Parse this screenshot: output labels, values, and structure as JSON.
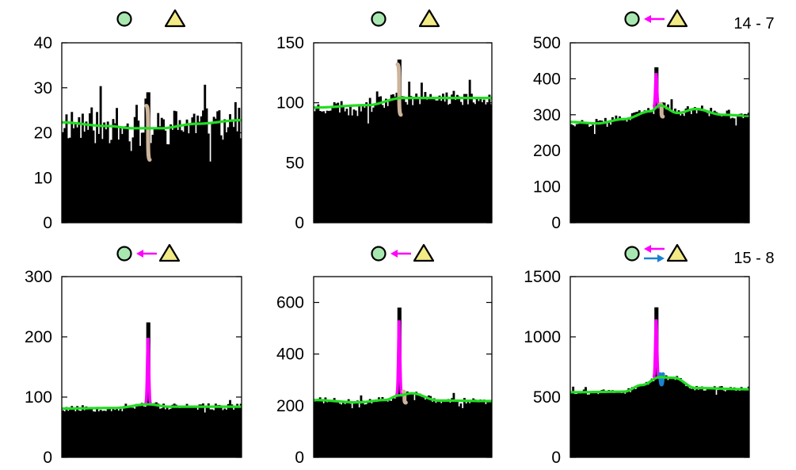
{
  "figure": {
    "background": "#ffffff",
    "colors": {
      "histogram": "#000000",
      "background_fit": "#22dd22",
      "enhancement": "#ff00ff",
      "depletion": "#ccb49a",
      "secondary_peak": "#1b82d0",
      "circle_marker": "#a8e8b0",
      "triangle_marker": "#f2ea85",
      "arrow_magenta": "#ff00ff",
      "arrow_blue": "#1b82d0"
    },
    "icons": [
      "circle-marker-icon",
      "triangle-marker-icon",
      "arrow-left-magenta-icon",
      "arrow-right-blue-icon"
    ],
    "corner_labels": [
      "14 - 7",
      "15 - 8"
    ]
  },
  "chart_data": [
    {
      "type": "bar",
      "panel": "top-left",
      "header": {
        "circle": true,
        "triangle": true,
        "arrows": []
      },
      "ylim": [
        0,
        40
      ],
      "yticks": [
        "0",
        "10",
        "20",
        "30",
        "40"
      ],
      "grid": false,
      "xticks": false,
      "histogram": {
        "bins": 100,
        "level": 21,
        "noise": 4.2,
        "seed": 11,
        "spikes": [
          {
            "x": 0.48,
            "w": 0.012,
            "value": 29
          }
        ]
      },
      "background_curve": {
        "x": [
          0,
          0.25,
          0.4,
          0.55,
          0.75,
          1
        ],
        "y": [
          22.3,
          21.5,
          21,
          21,
          22,
          22.8
        ]
      },
      "features": [
        {
          "kind": "depletion",
          "x": 0.48,
          "width": 0.018,
          "top": 26,
          "bottom": 14
        }
      ],
      "corner_label": ""
    },
    {
      "type": "bar",
      "panel": "top-middle",
      "header": {
        "circle": true,
        "triangle": true,
        "arrows": []
      },
      "ylim": [
        0,
        150
      ],
      "yticks": [
        "0",
        "50",
        "100",
        "150"
      ],
      "grid": false,
      "xticks": false,
      "histogram": {
        "bins": 100,
        "level": 100,
        "noise": 6,
        "seed": 23,
        "spikes": [
          {
            "x": 0.48,
            "w": 0.012,
            "value": 136
          }
        ]
      },
      "background_curve": {
        "x": [
          0,
          0.3,
          0.5,
          0.7,
          1
        ],
        "y": [
          96,
          98,
          104,
          104,
          104
        ]
      },
      "features": [
        {
          "kind": "depletion",
          "x": 0.48,
          "width": 0.018,
          "top": 132,
          "bottom": 90
        }
      ],
      "corner_label": ""
    },
    {
      "type": "bar",
      "panel": "top-right",
      "header": {
        "circle": true,
        "triangle": true,
        "arrows": [
          "left-magenta"
        ]
      },
      "ylim": [
        0,
        500
      ],
      "yticks": [
        "0",
        "100",
        "200",
        "300",
        "400",
        "500"
      ],
      "grid": false,
      "xticks": false,
      "histogram": {
        "bins": 100,
        "level": 292,
        "noise": 13,
        "seed": 37,
        "spikes": [
          {
            "x": 0.48,
            "w": 0.012,
            "value": 432
          }
        ]
      },
      "background_curve": {
        "x": [
          0,
          0.15,
          0.3,
          0.45,
          0.5,
          0.6,
          0.7,
          0.85,
          1
        ],
        "y": [
          280,
          276,
          288,
          310,
          326,
          305,
          316,
          300,
          297
        ]
      },
      "features": [
        {
          "kind": "enhancement",
          "x": 0.48,
          "width": 0.018,
          "top": 415
        },
        {
          "kind": "depletion",
          "x": 0.51,
          "width": 0.014,
          "top": 330,
          "bottom": 295
        }
      ],
      "corner_label": "14 - 7"
    },
    {
      "type": "bar",
      "panel": "bottom-left",
      "header": {
        "circle": true,
        "triangle": true,
        "arrows": [
          "left-magenta"
        ]
      },
      "ylim": [
        0,
        300
      ],
      "yticks": [
        "0",
        "100",
        "200",
        "300"
      ],
      "grid": false,
      "xticks": false,
      "histogram": {
        "bins": 100,
        "level": 81,
        "noise": 6,
        "seed": 53,
        "spikes": [
          {
            "x": 0.48,
            "w": 0.012,
            "value": 224
          }
        ]
      },
      "background_curve": {
        "x": [
          0,
          0.3,
          0.48,
          0.6,
          1
        ],
        "y": [
          81,
          82,
          88,
          84,
          84
        ]
      },
      "features": [
        {
          "kind": "enhancement",
          "x": 0.48,
          "width": 0.018,
          "top": 198
        }
      ],
      "corner_label": ""
    },
    {
      "type": "bar",
      "panel": "bottom-middle",
      "header": {
        "circle": true,
        "triangle": true,
        "arrows": [
          "left-magenta"
        ]
      },
      "ylim": [
        0,
        700
      ],
      "yticks": [
        "0",
        "200",
        "400",
        "600"
      ],
      "grid": false,
      "xticks": false,
      "histogram": {
        "bins": 100,
        "level": 218,
        "noise": 12,
        "seed": 71,
        "spikes": [
          {
            "x": 0.48,
            "w": 0.012,
            "value": 580
          }
        ]
      },
      "background_curve": {
        "x": [
          0,
          0.25,
          0.4,
          0.48,
          0.55,
          0.7,
          1
        ],
        "y": [
          222,
          213,
          222,
          240,
          248,
          220,
          218
        ]
      },
      "features": [
        {
          "kind": "enhancement",
          "x": 0.48,
          "width": 0.018,
          "top": 530
        },
        {
          "kind": "depletion",
          "x": 0.51,
          "width": 0.014,
          "top": 255,
          "bottom": 212
        }
      ],
      "corner_label": ""
    },
    {
      "type": "bar",
      "panel": "bottom-right",
      "header": {
        "circle": true,
        "triangle": true,
        "arrows": [
          "left-magenta",
          "right-blue"
        ]
      },
      "ylim": [
        0,
        1500
      ],
      "yticks": [
        "0",
        "500",
        "1000",
        "1500"
      ],
      "grid": false,
      "xticks": false,
      "histogram": {
        "bins": 100,
        "level": 560,
        "noise": 22,
        "seed": 89,
        "spikes": [
          {
            "x": 0.48,
            "w": 0.012,
            "value": 1245
          }
        ]
      },
      "background_curve": {
        "x": [
          0,
          0.3,
          0.4,
          0.5,
          0.58,
          0.7,
          1
        ],
        "y": [
          540,
          545,
          600,
          665,
          660,
          575,
          565
        ]
      },
      "features": [
        {
          "kind": "enhancement",
          "x": 0.48,
          "width": 0.018,
          "top": 1145
        },
        {
          "kind": "secondary_peak",
          "x": 0.51,
          "width": 0.016,
          "top": 690,
          "bottom": 560
        }
      ],
      "corner_label": "15 - 8"
    }
  ]
}
